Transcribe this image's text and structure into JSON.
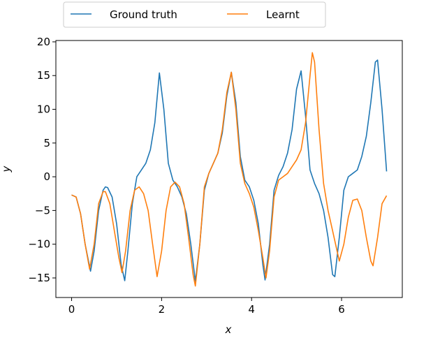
{
  "chart_data": {
    "type": "line",
    "xlabel": "x",
    "ylabel": "y",
    "xlim": [
      -0.35,
      7.35
    ],
    "ylim": [
      -17.9,
      20.2
    ],
    "xticks": [
      0,
      2,
      4,
      6
    ],
    "yticks": [
      {
        "value": -15,
        "label": "−15"
      },
      {
        "value": -10,
        "label": "−10"
      },
      {
        "value": -5,
        "label": "−5"
      },
      0,
      5,
      10,
      15,
      20
    ],
    "legend": "top",
    "series": [
      {
        "name": "Ground truth",
        "color": "#1f77b4",
        "x": [
          0,
          0.1,
          0.2,
          0.3,
          0.42,
          0.5,
          0.6,
          0.7,
          0.75,
          0.8,
          0.9,
          1.0,
          1.1,
          1.18,
          1.25,
          1.35,
          1.45,
          1.55,
          1.65,
          1.75,
          1.85,
          1.95,
          2.05,
          2.15,
          2.25,
          2.35,
          2.45,
          2.55,
          2.65,
          2.75,
          2.85,
          2.95,
          3.05,
          3.15,
          3.25,
          3.35,
          3.45,
          3.55,
          3.65,
          3.75,
          3.85,
          3.95,
          4.05,
          4.15,
          4.25,
          4.3,
          4.4,
          4.5,
          4.6,
          4.7,
          4.8,
          4.9,
          5.0,
          5.1,
          5.2,
          5.3,
          5.4,
          5.5,
          5.6,
          5.7,
          5.8,
          5.85,
          5.95,
          6.05,
          6.15,
          6.25,
          6.35,
          6.45,
          6.55,
          6.65,
          6.75,
          6.8,
          6.9,
          7.0
        ],
        "values": [
          -2.7,
          -3,
          -5.5,
          -10,
          -14,
          -11,
          -5,
          -2,
          -1.5,
          -1.6,
          -3,
          -7,
          -13,
          -15.4,
          -11,
          -4,
          0,
          1,
          2,
          4,
          8,
          15.4,
          10,
          2,
          -0.5,
          -1.5,
          -3,
          -5.5,
          -10,
          -15.5,
          -10,
          -2,
          0.5,
          2,
          3.5,
          6.5,
          12,
          15.5,
          11,
          3,
          -0.5,
          -1.5,
          -3.5,
          -7,
          -13,
          -15.3,
          -10,
          -2,
          0.2,
          1.5,
          3.5,
          7,
          13,
          15.7,
          9,
          1,
          -1,
          -2.5,
          -5,
          -9,
          -14.5,
          -14.8,
          -9,
          -2,
          0,
          0.5,
          1,
          3,
          6,
          11,
          17,
          17.3,
          10,
          0.8
        ]
      },
      {
        "name": "Learnt",
        "color": "#ff7f0e",
        "x": [
          0,
          0.1,
          0.2,
          0.3,
          0.4,
          0.5,
          0.6,
          0.7,
          0.75,
          0.85,
          0.95,
          1.05,
          1.12,
          1.2,
          1.3,
          1.4,
          1.5,
          1.6,
          1.7,
          1.8,
          1.9,
          2.0,
          2.1,
          2.2,
          2.3,
          2.4,
          2.5,
          2.6,
          2.7,
          2.75,
          2.85,
          2.95,
          3.05,
          3.15,
          3.25,
          3.35,
          3.45,
          3.55,
          3.65,
          3.75,
          3.85,
          3.95,
          4.05,
          4.15,
          4.25,
          4.32,
          4.4,
          4.5,
          4.6,
          4.7,
          4.8,
          4.9,
          5.0,
          5.1,
          5.2,
          5.3,
          5.35,
          5.4,
          5.5,
          5.6,
          5.7,
          5.8,
          5.9,
          5.95,
          6.05,
          6.15,
          6.25,
          6.35,
          6.45,
          6.55,
          6.65,
          6.7,
          6.8,
          6.9,
          7.0
        ],
        "values": [
          -2.7,
          -3,
          -5.5,
          -10,
          -13.7,
          -10,
          -4,
          -2.2,
          -2.2,
          -4,
          -8,
          -12,
          -14.2,
          -11,
          -5,
          -2,
          -1.5,
          -2.5,
          -5,
          -10,
          -14.8,
          -11,
          -5,
          -1.5,
          -0.8,
          -1.5,
          -4,
          -9,
          -14.5,
          -16.2,
          -10,
          -1.5,
          0.5,
          2,
          3.5,
          7,
          12.5,
          15.5,
          10,
          2,
          -1,
          -2.5,
          -4.5,
          -8,
          -12,
          -15,
          -11,
          -3,
          -0.5,
          0,
          0.5,
          1.5,
          2.5,
          4,
          8,
          15,
          18.4,
          17,
          7,
          -1,
          -5,
          -8,
          -11,
          -12.5,
          -10,
          -6,
          -3.5,
          -3.3,
          -5,
          -9,
          -12.5,
          -13.2,
          -9,
          -4,
          -2.8
        ]
      }
    ]
  }
}
